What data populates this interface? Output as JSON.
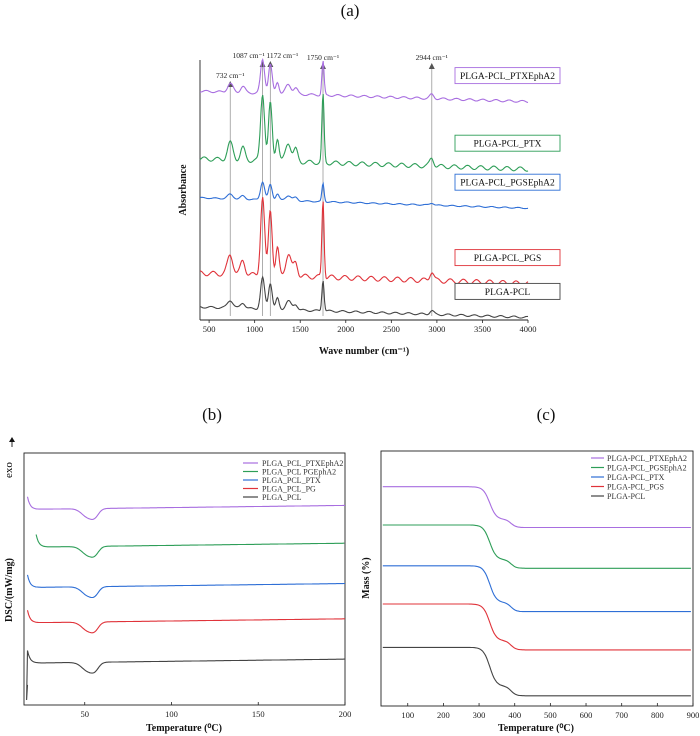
{
  "chart_data": [
    {
      "id": "a",
      "type": "line",
      "panel_label": "(a)",
      "xlabel": "Wave number (cm⁻¹)",
      "ylabel": "Absorbance",
      "xlim": [
        400,
        4000
      ],
      "xticks": [
        500,
        1000,
        1500,
        2000,
        2500,
        3000,
        3500,
        4000
      ],
      "peaks": [
        {
          "x": 732,
          "label": "732 cm⁻¹"
        },
        {
          "x": 1087,
          "label": "1087 cm⁻¹"
        },
        {
          "x": 1172,
          "label": "1172 cm⁻¹"
        },
        {
          "x": 1750,
          "label": "1750 cm⁻¹"
        },
        {
          "x": 2944,
          "label": "2944 cm⁻¹"
        }
      ],
      "series": [
        {
          "name": "PLGA-PCL_PTXEphA2",
          "color": "#a86ee0",
          "baseline": 0.88,
          "scale": 0.13
        },
        {
          "name": "PLGA-PCL_PTX",
          "color": "#2e9e58",
          "baseline": 0.62,
          "scale": 0.26
        },
        {
          "name": "PLGA-PCL_PGSEphA2",
          "color": "#2f6fd6",
          "baseline": 0.47,
          "scale": 0.07
        },
        {
          "name": "PLGA-PCL_PGS",
          "color": "#e0333a",
          "baseline": 0.18,
          "scale": 0.3
        },
        {
          "name": "PLGA-PCL",
          "color": "#444444",
          "baseline": 0.05,
          "scale": 0.12
        }
      ]
    },
    {
      "id": "b",
      "type": "line",
      "panel_label": "(b)",
      "xlabel": "Temperature (⁰C)",
      "ylabel": "DSC/(mW/mg)",
      "exo_label": "exo",
      "xlim": [
        15,
        200
      ],
      "xticks": [
        50,
        100,
        150,
        200
      ],
      "legend_position": "top-right",
      "series": [
        {
          "name": "PLGA_PCL_PTXEphA2",
          "color": "#a86ee0",
          "level": 0.78
        },
        {
          "name": "PLGA_PCL PGEphA2",
          "color": "#2e9e58",
          "level": 0.63
        },
        {
          "name": "PLGA_PCL_PTX",
          "color": "#2f6fd6",
          "level": 0.47
        },
        {
          "name": "PLGA_PCL_PG",
          "color": "#e0333a",
          "level": 0.33
        },
        {
          "name": "PLGA_PCL",
          "color": "#444444",
          "level": 0.17
        }
      ]
    },
    {
      "id": "c",
      "type": "line",
      "panel_label": "(c)",
      "xlabel": "Temperature (⁰C)",
      "ylabel": "Mass (%)",
      "xlim": [
        25,
        900
      ],
      "xticks": [
        100,
        200,
        300,
        400,
        500,
        600,
        700,
        800,
        900
      ],
      "legend_position": "top-right",
      "series": [
        {
          "name": "PLGA-PCL_PTXEphA2",
          "color": "#a86ee0",
          "start": 0.86,
          "end": 0.7
        },
        {
          "name": "PLGA-PCL_PGSEphA2",
          "color": "#2e9e58",
          "start": 0.71,
          "end": 0.54
        },
        {
          "name": "PLGA-PCL_PTX",
          "color": "#2f6fd6",
          "start": 0.55,
          "end": 0.37
        },
        {
          "name": "PLGA-PCL_PGS",
          "color": "#e0333a",
          "start": 0.4,
          "end": 0.22
        },
        {
          "name": "PLGA-PCL",
          "color": "#444444",
          "start": 0.23,
          "end": 0.04
        }
      ]
    }
  ]
}
